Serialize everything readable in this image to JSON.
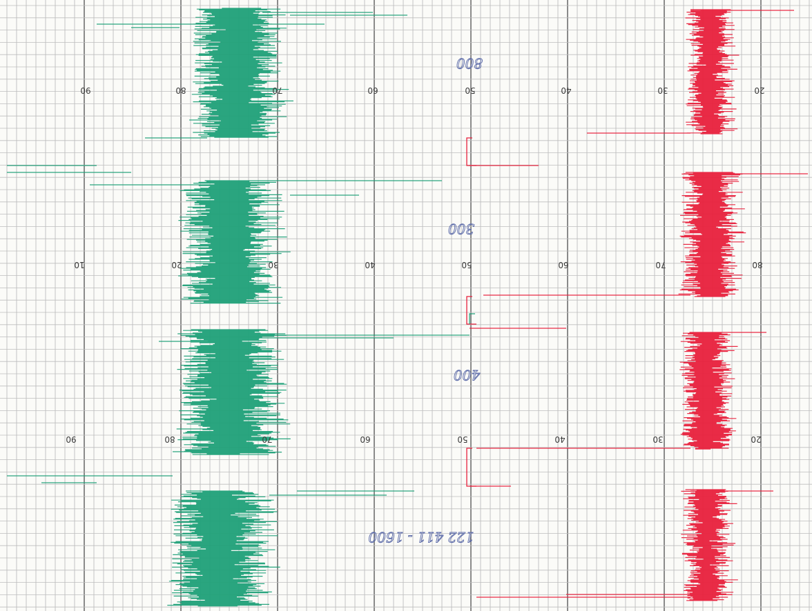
{
  "chart_paper": {
    "colors": {
      "paper": "#fbfbf8",
      "grid_minor": "#bdbdbd",
      "grid_major": "#6f6f6f",
      "green_trace": "#1fa078",
      "red_trace": "#e8203c",
      "handwriting": "#5b6aa8"
    },
    "sections": [
      {
        "labels": [
          "90",
          "80",
          "70",
          "60",
          "50",
          "40",
          "30",
          "20"
        ]
      },
      {
        "labels": [
          "10",
          "20",
          "30",
          "40",
          "50",
          "60",
          "70",
          "80"
        ]
      },
      {
        "labels": [
          "90",
          "80",
          "70",
          "60",
          "50",
          "40",
          "30",
          "20"
        ]
      }
    ],
    "handwritten_notes": [
      "800",
      "300",
      "400",
      "122 411 - 1600"
    ]
  }
}
